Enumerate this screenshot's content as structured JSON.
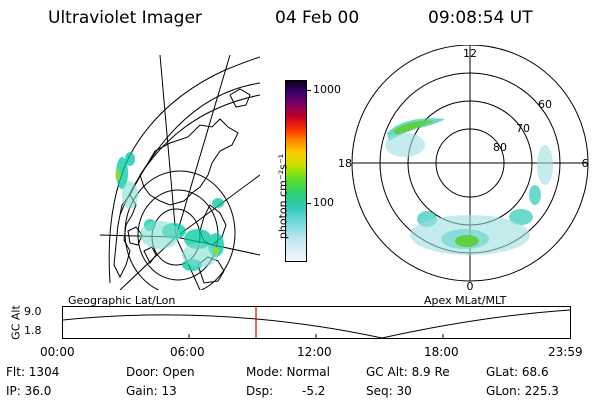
{
  "header": {
    "instrument": "Ultraviolet Imager",
    "date": "04 Feb 00",
    "time": "09:08:54 UT"
  },
  "colorbar": {
    "unit_label": "photon cm⁻²s⁻¹",
    "tick_labels": [
      "1000",
      "100"
    ]
  },
  "polar_plot": {
    "mlt_labels": {
      "top": "12",
      "left": "18",
      "right": "6",
      "bottom": "0"
    },
    "lat_labels": [
      "60",
      "70",
      "80"
    ]
  },
  "projections": {
    "left": "Geographic Lat/Lon",
    "right": "Apex MLat/MLT"
  },
  "altitude_plot": {
    "axis_title": "GC Alt",
    "tick_labels": [
      "9.0",
      "1.8"
    ],
    "time_ticks": [
      "00:00",
      "06:00",
      "12:00",
      "18:00",
      "23:59"
    ],
    "marker_color": "#e00000"
  },
  "info": {
    "flt": "Flt: 1304",
    "ip": "IP: 36.0",
    "door": "Door: Open",
    "gain": "Gain: 13",
    "mode": "Mode: Normal",
    "dsp_label": "Dsp:",
    "dsp_value": "-5.2",
    "gc_alt": "GC Alt: 8.9 Re",
    "seq": "Seq: 30",
    "glat": "GLat: 68.6",
    "glon": "GLon: 225.3"
  }
}
